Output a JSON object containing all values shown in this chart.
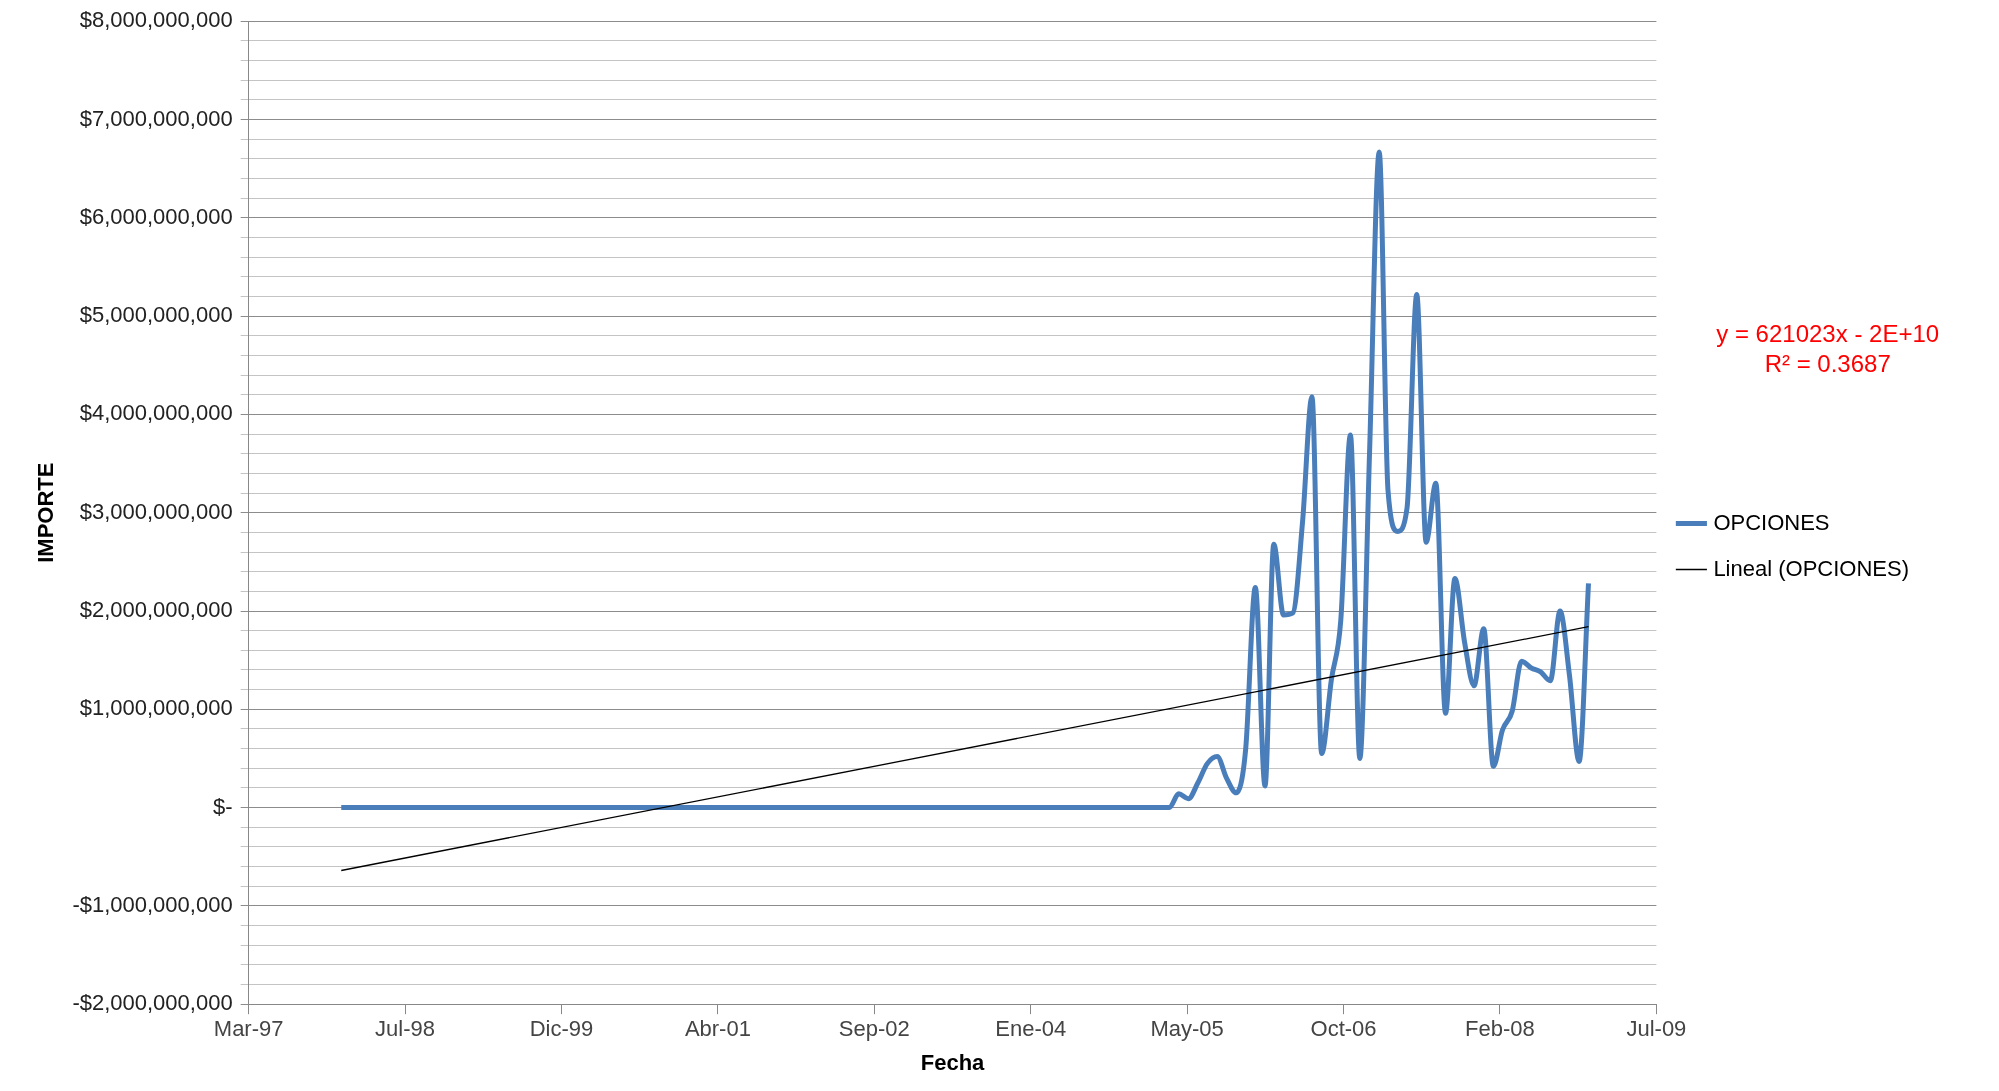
{
  "chart_data": {
    "type": "line",
    "xlabel": "Fecha",
    "ylabel": "IMPORTE",
    "annotations": [
      "y = 621023x - 2E+10",
      "R² = 0.3687"
    ],
    "x": [
      "1998-01",
      "1998-02",
      "1998-03",
      "1998-04",
      "1998-05",
      "1998-06",
      "1998-07",
      "1998-08",
      "1998-09",
      "1998-10",
      "1998-11",
      "1998-12",
      "1999-01",
      "1999-02",
      "1999-03",
      "1999-04",
      "1999-05",
      "1999-06",
      "1999-07",
      "1999-08",
      "1999-09",
      "1999-10",
      "1999-11",
      "1999-12",
      "2000-01",
      "2000-02",
      "2000-03",
      "2000-04",
      "2000-05",
      "2000-06",
      "2000-07",
      "2000-08",
      "2000-09",
      "2000-10",
      "2000-11",
      "2000-12",
      "2001-01",
      "2001-02",
      "2001-03",
      "2001-04",
      "2001-05",
      "2001-06",
      "2001-07",
      "2001-08",
      "2001-09",
      "2001-10",
      "2001-11",
      "2001-12",
      "2002-01",
      "2002-02",
      "2002-03",
      "2002-04",
      "2002-05",
      "2002-06",
      "2002-07",
      "2002-08",
      "2002-09",
      "2002-10",
      "2002-11",
      "2002-12",
      "2003-01",
      "2003-02",
      "2003-03",
      "2003-04",
      "2003-05",
      "2003-06",
      "2003-07",
      "2003-08",
      "2003-09",
      "2003-10",
      "2003-11",
      "2003-12",
      "2004-01",
      "2004-02",
      "2004-03",
      "2004-04",
      "2004-05",
      "2004-06",
      "2004-07",
      "2004-08",
      "2004-09",
      "2004-10",
      "2004-11",
      "2004-12",
      "2005-01",
      "2005-02",
      "2005-03",
      "2005-04",
      "2005-05",
      "2005-06",
      "2005-07",
      "2005-08",
      "2005-09",
      "2005-10",
      "2005-11",
      "2005-12",
      "2006-01",
      "2006-02",
      "2006-03",
      "2006-04",
      "2006-05",
      "2006-06",
      "2006-07",
      "2006-08",
      "2006-09",
      "2006-10",
      "2006-11",
      "2006-12",
      "2007-01",
      "2007-02",
      "2007-03",
      "2007-04",
      "2007-05",
      "2007-06",
      "2007-07",
      "2007-08",
      "2007-09",
      "2007-10",
      "2007-11",
      "2007-12",
      "2008-01",
      "2008-02",
      "2008-03",
      "2008-04",
      "2008-05",
      "2008-06",
      "2008-07",
      "2008-08",
      "2008-09",
      "2008-10",
      "2008-11",
      "2008-12"
    ],
    "series": [
      {
        "name": "OPCIONES",
        "color": "#4a7ebb",
        "values": [
          0,
          0,
          0,
          0,
          0,
          0,
          0,
          0,
          0,
          0,
          0,
          0,
          0,
          0,
          0,
          0,
          0,
          0,
          0,
          0,
          0,
          0,
          0,
          0,
          0,
          0,
          0,
          0,
          0,
          0,
          0,
          0,
          0,
          0,
          0,
          0,
          0,
          0,
          0,
          0,
          0,
          0,
          0,
          0,
          0,
          0,
          0,
          0,
          0,
          0,
          0,
          0,
          0,
          0,
          0,
          0,
          0,
          0,
          0,
          0,
          0,
          0,
          0,
          0,
          0,
          0,
          0,
          0,
          0,
          0,
          0,
          0,
          0,
          0,
          0,
          0,
          0,
          0,
          0,
          0,
          0,
          0,
          0,
          0,
          0,
          0,
          0,
          0,
          140000000,
          90000000,
          250000000,
          450000000,
          520000000,
          300000000,
          150000000,
          590000000,
          2240000000,
          220000000,
          2680000000,
          1960000000,
          1980000000,
          2910000000,
          4180000000,
          550000000,
          1300000000,
          1900000000,
          3790000000,
          500000000,
          3600000000,
          6670000000,
          3230000000,
          2810000000,
          3050000000,
          5220000000,
          2700000000,
          3300000000,
          960000000,
          2330000000,
          1680000000,
          1240000000,
          1820000000,
          420000000,
          790000000,
          980000000,
          1490000000,
          1420000000,
          1380000000,
          1290000000,
          2000000000,
          1350000000,
          470000000,
          2280000000
        ]
      },
      {
        "name": "Lineal (OPCIONES)",
        "type": "line",
        "color": "#000000",
        "x": [
          "1998-01",
          "2008-12"
        ],
        "values": [
          -640000000,
          1840000000
        ]
      }
    ],
    "xlim": [
      "1997-03-11",
      "2009-07-06"
    ],
    "xticks": [
      {
        "value": "1997-03-11",
        "label": "Mar-97"
      },
      {
        "value": "1998-07-24",
        "label": "Jul-98"
      },
      {
        "value": "1999-12-06",
        "label": "Dic-99"
      },
      {
        "value": "2001-04-19",
        "label": "Abr-01"
      },
      {
        "value": "2002-09-01",
        "label": "Sep-02"
      },
      {
        "value": "2004-01-14",
        "label": "Ene-04"
      },
      {
        "value": "2005-05-28",
        "label": "May-05"
      },
      {
        "value": "2006-10-10",
        "label": "Oct-06"
      },
      {
        "value": "2008-02-22",
        "label": "Feb-08"
      },
      {
        "value": "2009-07-06",
        "label": "Jul-09"
      }
    ],
    "ylim": [
      -2000000000,
      8000000000
    ],
    "yticks": [
      {
        "value": -2000000000,
        "label": "-$2,000,000,000"
      },
      {
        "value": -1800000000,
        "label": null
      },
      {
        "value": -1600000000,
        "label": null
      },
      {
        "value": -1400000000,
        "label": null
      },
      {
        "value": -1200000000,
        "label": null
      },
      {
        "value": -1000000000,
        "label": "-$1,000,000,000"
      },
      {
        "value": -800000000,
        "label": null
      },
      {
        "value": -600000000,
        "label": null
      },
      {
        "value": -400000000,
        "label": null
      },
      {
        "value": -200000000,
        "label": null
      },
      {
        "value": 0,
        "label": "$-"
      },
      {
        "value": 200000000,
        "label": null
      },
      {
        "value": 400000000,
        "label": null
      },
      {
        "value": 600000000,
        "label": null
      },
      {
        "value": 800000000,
        "label": null
      },
      {
        "value": 1000000000,
        "label": "$1,000,000,000"
      },
      {
        "value": 1200000000,
        "label": null
      },
      {
        "value": 1400000000,
        "label": null
      },
      {
        "value": 1600000000,
        "label": null
      },
      {
        "value": 1800000000,
        "label": null
      },
      {
        "value": 2000000000,
        "label": "$2,000,000,000"
      },
      {
        "value": 2200000000,
        "label": null
      },
      {
        "value": 2400000000,
        "label": null
      },
      {
        "value": 2600000000,
        "label": null
      },
      {
        "value": 2800000000,
        "label": null
      },
      {
        "value": 3000000000,
        "label": "$3,000,000,000"
      },
      {
        "value": 3200000000,
        "label": null
      },
      {
        "value": 3400000000,
        "label": null
      },
      {
        "value": 3600000000,
        "label": null
      },
      {
        "value": 3800000000,
        "label": null
      },
      {
        "value": 4000000000,
        "label": "$4,000,000,000"
      },
      {
        "value": 4200000000,
        "label": null
      },
      {
        "value": 4400000000,
        "label": null
      },
      {
        "value": 4600000000,
        "label": null
      },
      {
        "value": 4800000000,
        "label": null
      },
      {
        "value": 5000000000,
        "label": "$5,000,000,000"
      },
      {
        "value": 5200000000,
        "label": null
      },
      {
        "value": 5400000000,
        "label": null
      },
      {
        "value": 5600000000,
        "label": null
      },
      {
        "value": 5800000000,
        "label": null
      },
      {
        "value": 6000000000,
        "label": "$6,000,000,000"
      },
      {
        "value": 6200000000,
        "label": null
      },
      {
        "value": 6400000000,
        "label": null
      },
      {
        "value": 6600000000,
        "label": null
      },
      {
        "value": 6800000000,
        "label": null
      },
      {
        "value": 7000000000,
        "label": "$7,000,000,000"
      },
      {
        "value": 7200000000,
        "label": null
      },
      {
        "value": 7400000000,
        "label": null
      },
      {
        "value": 7600000000,
        "label": null
      },
      {
        "value": 7800000000,
        "label": null
      },
      {
        "value": 8000000000,
        "label": "$8,000,000,000"
      }
    ],
    "grid": "y",
    "legend": "right",
    "marker": "none"
  }
}
